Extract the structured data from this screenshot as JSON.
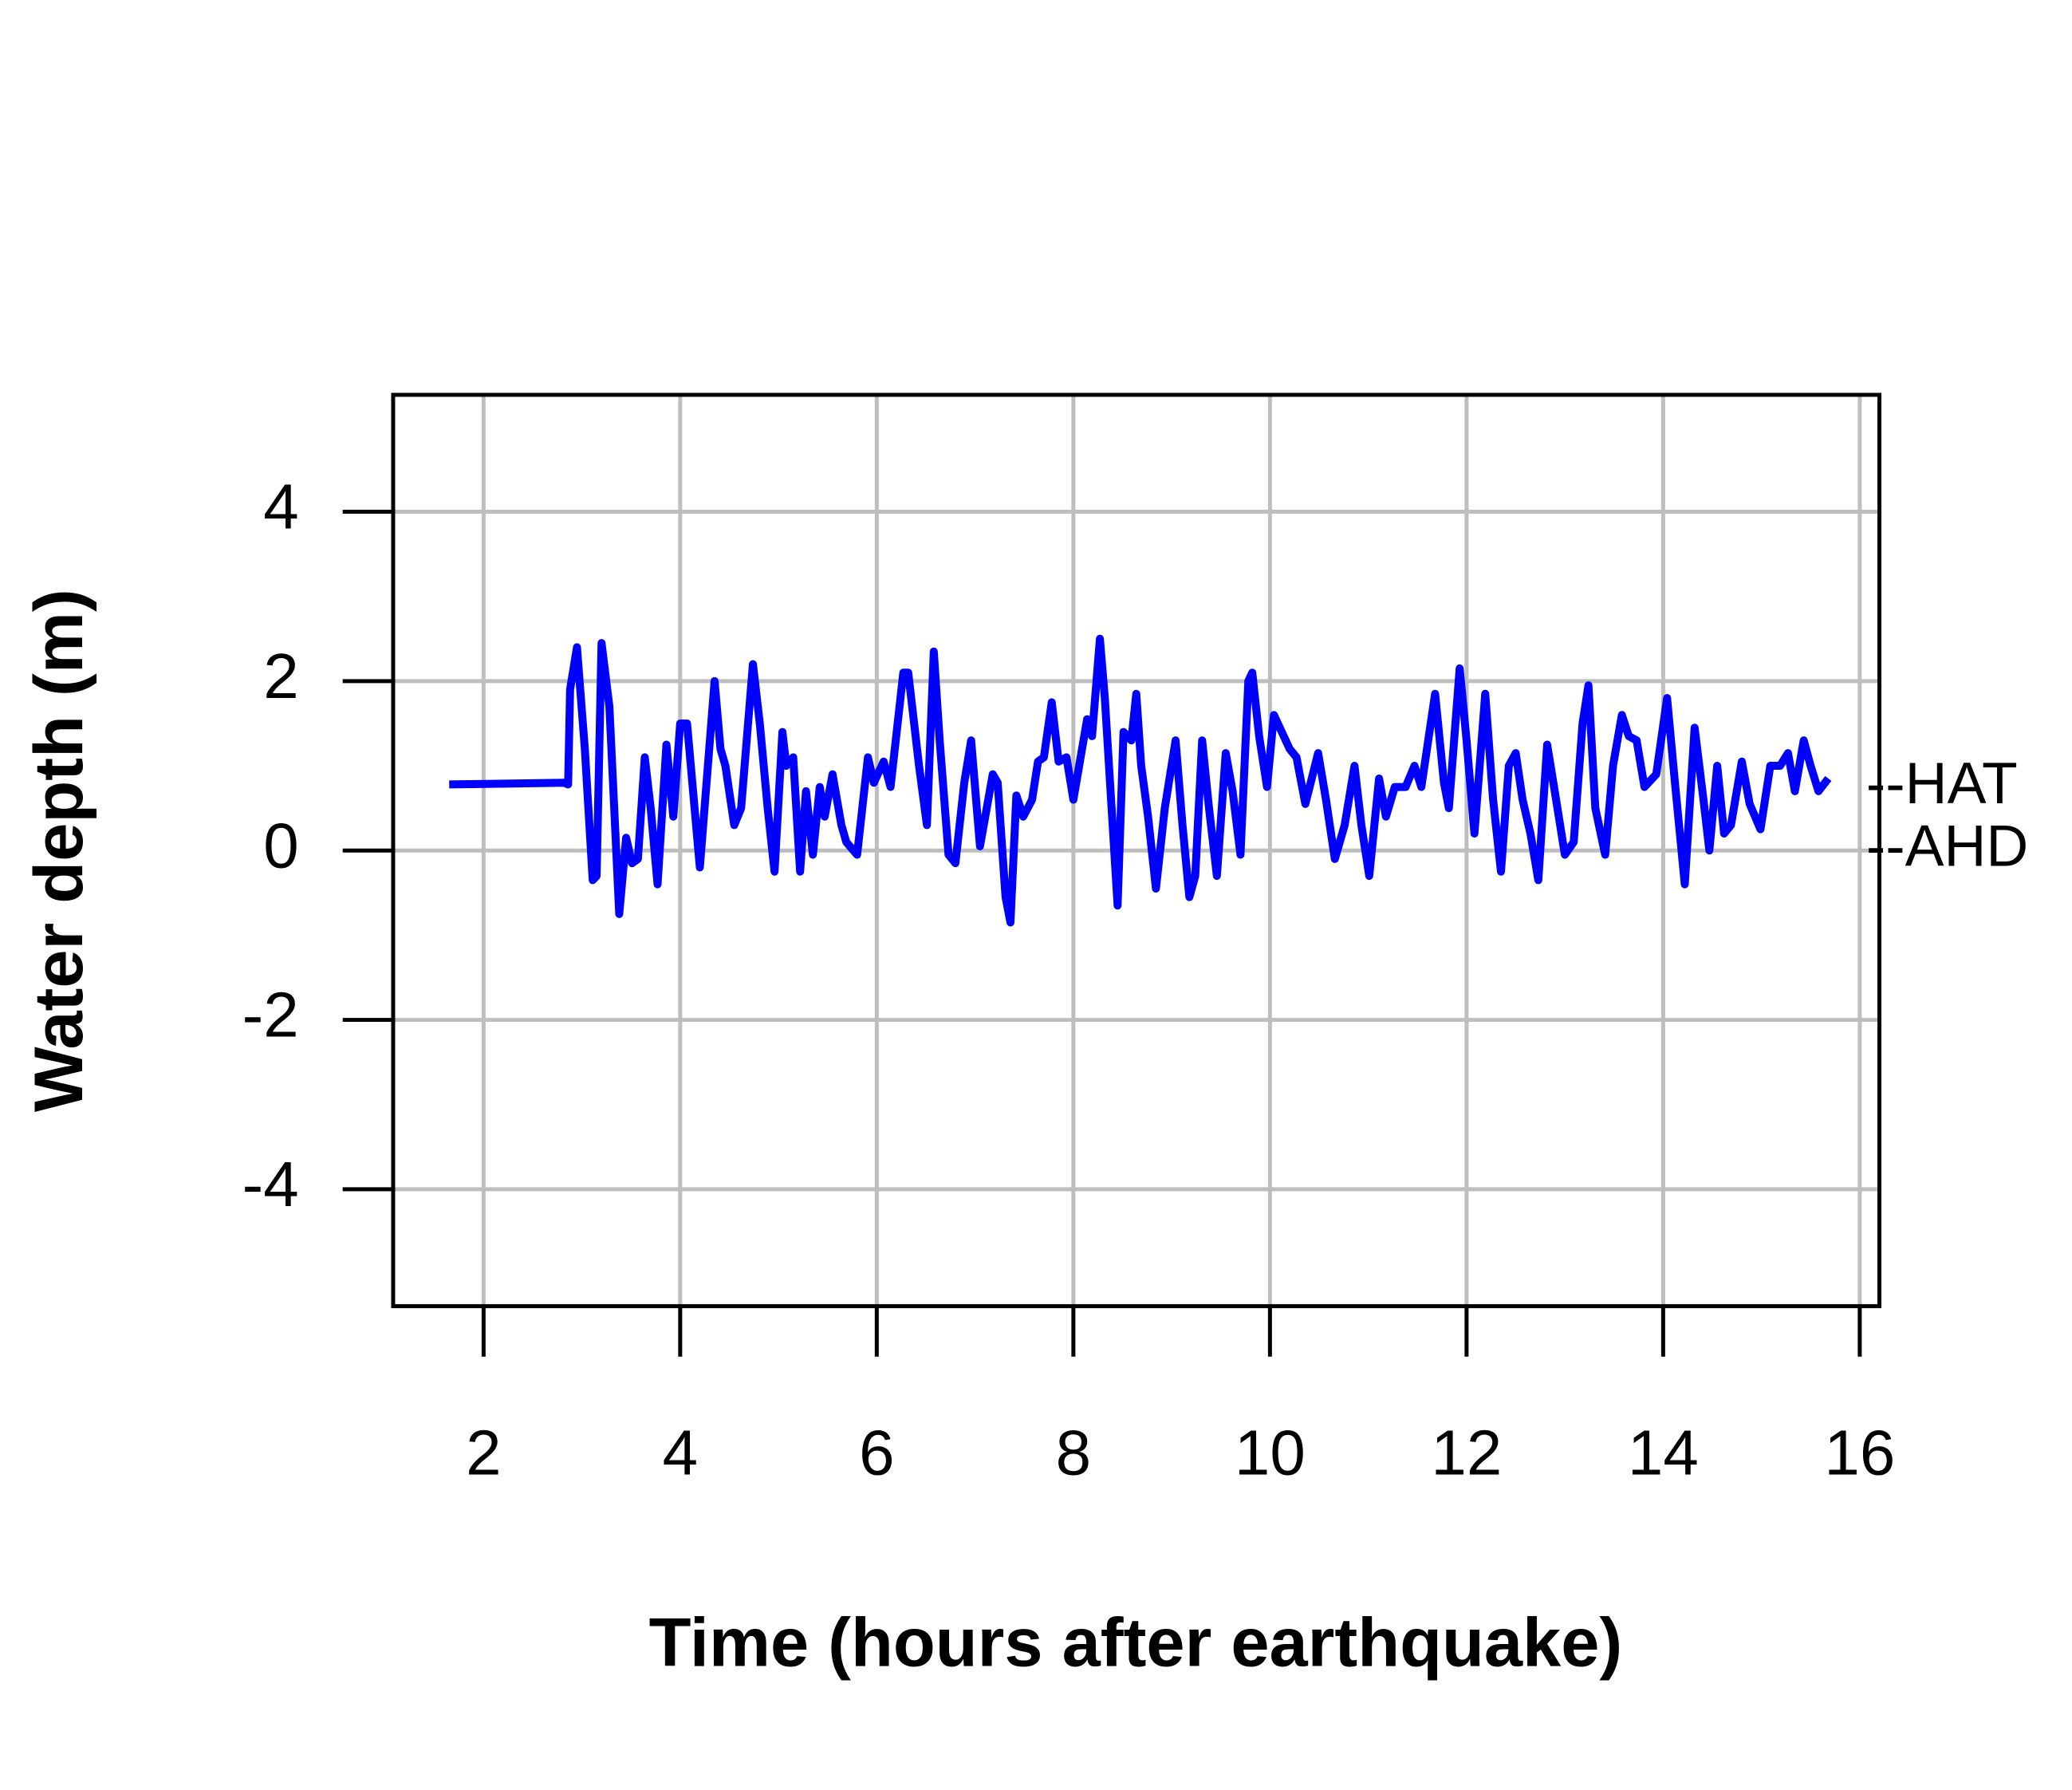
{
  "chart_data": {
    "type": "line",
    "xlabel": "Time (hours after earthquake)",
    "ylabel": "Water depth (m)",
    "xlim": [
      1.08,
      16.2
    ],
    "ylim": [
      -5.38,
      5.38
    ],
    "xticks": [
      2,
      4,
      6,
      8,
      10,
      12,
      14,
      16
    ],
    "yticks": [
      -4,
      -2,
      0,
      2,
      4
    ],
    "grid": true,
    "annotations": [
      {
        "text": "--HAT",
        "y": 0.74
      },
      {
        "text": "--AHD",
        "y": 0
      }
    ],
    "series": [
      {
        "color": "#0000ff",
        "x": [
          1.65,
          2.82,
          2.86,
          2.88,
          2.95,
          3.03,
          3.11,
          3.15,
          3.2,
          3.28,
          3.38,
          3.45,
          3.51,
          3.57,
          3.64,
          3.7,
          3.77,
          3.86,
          3.93,
          4.0,
          4.07,
          4.2,
          4.35,
          4.41,
          4.46,
          4.55,
          4.62,
          4.74,
          4.81,
          4.89,
          4.96,
          5.04,
          5.08,
          5.15,
          5.22,
          5.28,
          5.35,
          5.42,
          5.47,
          5.55,
          5.64,
          5.69,
          5.8,
          5.91,
          5.97,
          6.07,
          6.14,
          6.27,
          6.32,
          6.43,
          6.51,
          6.58,
          6.64,
          6.73,
          6.8,
          6.89,
          6.96,
          7.05,
          7.18,
          7.23,
          7.31,
          7.36,
          7.42,
          7.49,
          7.58,
          7.64,
          7.7,
          7.78,
          7.85,
          7.93,
          8.0,
          8.14,
          8.19,
          8.27,
          8.32,
          8.45,
          8.51,
          8.59,
          8.64,
          8.69,
          8.76,
          8.84,
          8.93,
          9.04,
          9.11,
          9.18,
          9.24,
          9.31,
          9.38,
          9.46,
          9.55,
          9.62,
          9.7,
          9.78,
          9.82,
          9.89,
          9.97,
          10.04,
          10.12,
          10.2,
          10.27,
          10.36,
          10.49,
          10.57,
          10.66,
          10.76,
          10.86,
          10.93,
          11.01,
          11.11,
          11.18,
          11.27,
          11.38,
          11.47,
          11.54,
          11.68,
          11.77,
          11.82,
          11.93,
          12.0,
          12.08,
          12.19,
          12.27,
          12.35,
          12.43,
          12.5,
          12.57,
          12.65,
          12.73,
          12.82,
          12.89,
          13.0,
          13.09,
          13.18,
          13.24,
          13.31,
          13.41,
          13.49,
          13.58,
          13.65,
          13.73,
          13.81,
          13.93,
          14.04,
          14.12,
          14.22,
          14.32,
          14.41,
          14.47,
          14.55,
          14.62,
          14.69,
          14.8,
          14.88,
          14.99,
          15.09,
          15.19,
          15.27,
          15.34,
          15.43,
          15.5,
          15.58,
          15.68
        ],
        "values": [
          0.78,
          0.8,
          0.78,
          1.9,
          2.4,
          1.2,
          -0.35,
          -0.3,
          2.45,
          1.7,
          -0.75,
          0.15,
          -0.15,
          -0.1,
          1.1,
          0.5,
          -0.4,
          1.25,
          0.4,
          1.5,
          1.5,
          -0.2,
          2.0,
          1.2,
          1.0,
          0.3,
          0.5,
          2.2,
          1.5,
          0.5,
          -0.25,
          1.4,
          1.0,
          1.1,
          -0.25,
          0.7,
          -0.05,
          0.75,
          0.4,
          0.9,
          0.3,
          0.1,
          -0.05,
          1.1,
          0.8,
          1.05,
          0.75,
          2.1,
          2.1,
          1.0,
          0.3,
          2.35,
          1.3,
          -0.05,
          -0.15,
          0.8,
          1.3,
          0.05,
          0.9,
          0.8,
          -0.55,
          -0.85,
          0.65,
          0.4,
          0.6,
          1.05,
          1.1,
          1.75,
          1.05,
          1.1,
          0.6,
          1.55,
          1.35,
          2.5,
          1.8,
          -0.65,
          1.4,
          1.3,
          1.85,
          1.0,
          0.4,
          -0.45,
          0.5,
          1.3,
          0.3,
          -0.55,
          -0.3,
          1.3,
          0.5,
          -0.3,
          1.15,
          0.7,
          -0.05,
          2.0,
          2.1,
          1.35,
          0.75,
          1.6,
          1.4,
          1.2,
          1.1,
          0.55,
          1.15,
          0.6,
          -0.1,
          0.3,
          1.0,
          0.3,
          -0.3,
          0.85,
          0.4,
          0.75,
          0.75,
          1.0,
          0.75,
          1.85,
          0.8,
          0.5,
          2.15,
          1.3,
          0.2,
          1.85,
          0.6,
          -0.25,
          1.0,
          1.15,
          0.6,
          0.2,
          -0.35,
          1.25,
          0.75,
          -0.05,
          0.1,
          1.5,
          1.95,
          0.5,
          -0.05,
          1.0,
          1.6,
          1.35,
          1.3,
          0.75,
          0.9,
          1.8,
          0.8,
          -0.4,
          1.45,
          0.6,
          0.0,
          1.0,
          0.2,
          0.3,
          1.05,
          0.55,
          0.25,
          1.0,
          1.0,
          1.15,
          0.7,
          1.3,
          1.0,
          0.7,
          0.85
        ]
      }
    ]
  }
}
